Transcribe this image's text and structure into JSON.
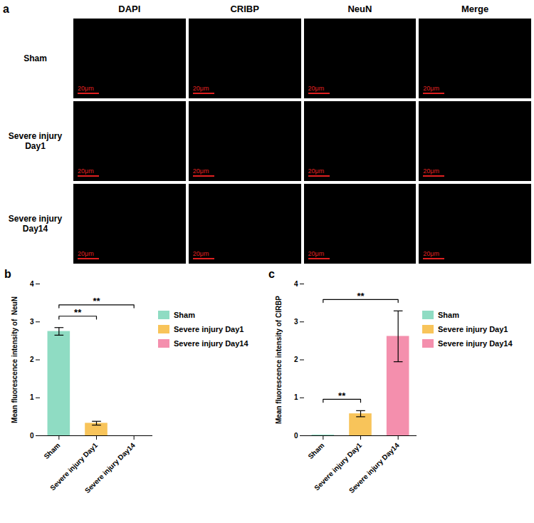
{
  "image_grid": {
    "panel_label": "a",
    "columns": [
      "DAPI",
      "CRIBP",
      "NeuN",
      "Merge"
    ],
    "rows": [
      "Sham",
      "Severe injury Day1",
      "Severe injury Day14"
    ],
    "scale_bar": "20μm"
  },
  "chart_data": [
    {
      "type": "bar",
      "panel_label": "b",
      "ylabel": "Mean fluorescence intensity of  NeuN",
      "categories": [
        "Sham",
        "Severe injury Day1",
        "Severe injury Day14"
      ],
      "values": [
        2.75,
        0.33,
        0
      ],
      "errors": [
        0.1,
        0.05,
        0
      ],
      "colors": [
        "#8fdcc3",
        "#f8c45a",
        "#f48fad"
      ],
      "ylim": [
        0,
        4
      ],
      "yticks": [
        0,
        1,
        2,
        3,
        4
      ],
      "legend": "right",
      "significance": [
        {
          "from": "Sham",
          "to": "Severe injury Day1",
          "label": "**"
        },
        {
          "from": "Sham",
          "to": "Severe injury Day14",
          "label": "**"
        }
      ]
    },
    {
      "type": "bar",
      "panel_label": "c",
      "ylabel": "Mean fluorescence intensity of CIRBP",
      "categories": [
        "Sham",
        "Severe injury Day1",
        "Severe injury Day14"
      ],
      "values": [
        0.02,
        0.58,
        2.62
      ],
      "errors": [
        0,
        0.08,
        0.67
      ],
      "colors": [
        "#8fdcc3",
        "#f8c45a",
        "#f48fad"
      ],
      "ylim": [
        0,
        4
      ],
      "yticks": [
        0,
        1,
        2,
        3,
        4
      ],
      "legend": "right",
      "significance": [
        {
          "from": "Sham",
          "to": "Severe injury Day1",
          "label": "**"
        },
        {
          "from": "Sham",
          "to": "Severe injury Day14",
          "label": "**"
        }
      ]
    }
  ]
}
